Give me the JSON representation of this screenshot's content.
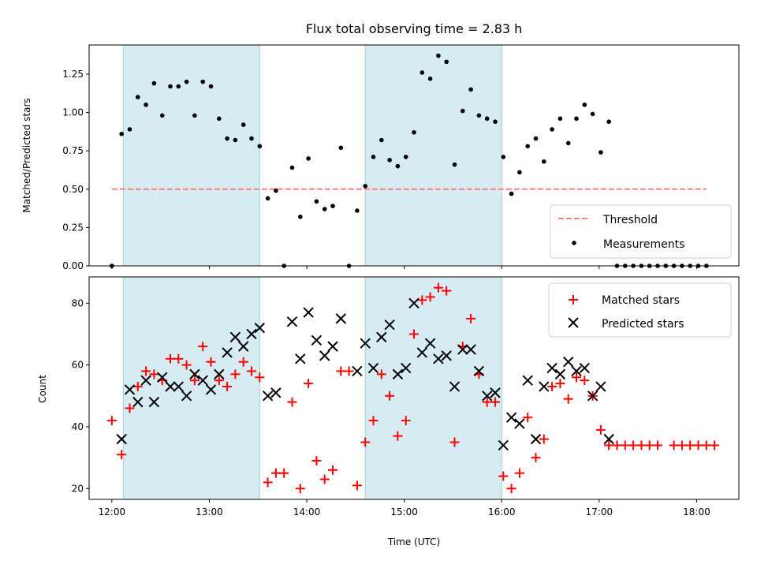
{
  "chart_data": [
    {
      "type": "scatter",
      "title": "Flux total observing time = 2.83 h",
      "ylabel": "Matched/Predicted stars",
      "xlabel": "",
      "xlim": [
        "11:46",
        "18:26"
      ],
      "ylim": [
        0,
        1.44
      ],
      "xticks": [
        "12:00",
        "13:00",
        "14:00",
        "15:00",
        "16:00",
        "17:00",
        "18:00"
      ],
      "yticks": [
        "0.00",
        "0.25",
        "0.50",
        "0.75",
        "1.00",
        "1.25"
      ],
      "shaded_intervals": [
        [
          "12:07",
          "13:31"
        ],
        [
          "14:36",
          "16:00"
        ]
      ],
      "threshold": {
        "name": "Threshold",
        "value": 0.5,
        "x": [
          "12:00",
          "18:06"
        ],
        "color": "#ff7f7f"
      },
      "series": [
        {
          "name": "Measurements",
          "color": "#000000",
          "marker": "dot",
          "points": [
            [
              "12:00",
              0.0
            ],
            [
              "12:06",
              0.86
            ],
            [
              "12:11",
              0.89
            ],
            [
              "12:16",
              1.1
            ],
            [
              "12:21",
              1.05
            ],
            [
              "12:26",
              1.19
            ],
            [
              "12:31",
              0.98
            ],
            [
              "12:36",
              1.17
            ],
            [
              "12:41",
              1.17
            ],
            [
              "12:46",
              1.2
            ],
            [
              "12:51",
              0.98
            ],
            [
              "12:56",
              1.2
            ],
            [
              "13:01",
              1.17
            ],
            [
              "13:06",
              0.96
            ],
            [
              "13:11",
              0.83
            ],
            [
              "13:16",
              0.82
            ],
            [
              "13:21",
              0.92
            ],
            [
              "13:26",
              0.83
            ],
            [
              "13:31",
              0.78
            ],
            [
              "13:36",
              0.44
            ],
            [
              "13:41",
              0.49
            ],
            [
              "13:46",
              0.0
            ],
            [
              "13:51",
              0.64
            ],
            [
              "13:56",
              0.32
            ],
            [
              "14:01",
              0.7
            ],
            [
              "14:06",
              0.42
            ],
            [
              "14:11",
              0.37
            ],
            [
              "14:16",
              0.39
            ],
            [
              "14:21",
              0.77
            ],
            [
              "14:26",
              0.0
            ],
            [
              "14:31",
              0.36
            ],
            [
              "14:36",
              0.52
            ],
            [
              "14:41",
              0.71
            ],
            [
              "14:46",
              0.82
            ],
            [
              "14:51",
              0.69
            ],
            [
              "14:56",
              0.65
            ],
            [
              "15:01",
              0.71
            ],
            [
              "15:06",
              0.87
            ],
            [
              "15:11",
              1.26
            ],
            [
              "15:16",
              1.22
            ],
            [
              "15:21",
              1.37
            ],
            [
              "15:26",
              1.33
            ],
            [
              "15:31",
              0.66
            ],
            [
              "15:36",
              1.01
            ],
            [
              "15:41",
              1.15
            ],
            [
              "15:46",
              0.98
            ],
            [
              "15:51",
              0.96
            ],
            [
              "15:56",
              0.94
            ],
            [
              "16:01",
              0.71
            ],
            [
              "16:06",
              0.47
            ],
            [
              "16:11",
              0.61
            ],
            [
              "16:16",
              0.78
            ],
            [
              "16:21",
              0.83
            ],
            [
              "16:26",
              0.68
            ],
            [
              "16:31",
              0.89
            ],
            [
              "16:36",
              0.96
            ],
            [
              "16:41",
              0.8
            ],
            [
              "16:46",
              0.96
            ],
            [
              "16:51",
              1.05
            ],
            [
              "16:56",
              0.99
            ],
            [
              "17:01",
              0.74
            ],
            [
              "17:06",
              0.94
            ],
            [
              "17:11",
              0.0
            ],
            [
              "17:16",
              0.0
            ],
            [
              "17:21",
              0.0
            ],
            [
              "17:26",
              0.0
            ],
            [
              "17:31",
              0.0
            ],
            [
              "17:36",
              0.0
            ],
            [
              "17:41",
              0.0
            ],
            [
              "17:46",
              0.0
            ],
            [
              "17:51",
              0.0
            ],
            [
              "17:56",
              0.0
            ],
            [
              "18:01",
              0.0
            ],
            [
              "18:06",
              0.0
            ]
          ]
        }
      ],
      "legend": {
        "placement": "lower-right",
        "entries": [
          "Threshold",
          "Measurements"
        ]
      }
    },
    {
      "type": "scatter",
      "title": "",
      "ylabel": "Count",
      "xlabel": "Time (UTC)",
      "xlim": [
        "11:46",
        "18:26"
      ],
      "ylim": [
        16.5,
        88.5
      ],
      "xticks": [
        "12:00",
        "13:00",
        "14:00",
        "15:00",
        "16:00",
        "17:00",
        "18:00"
      ],
      "yticks": [
        "20",
        "40",
        "60",
        "80"
      ],
      "shaded_intervals": [
        [
          "12:07",
          "13:31"
        ],
        [
          "14:36",
          "16:00"
        ]
      ],
      "series": [
        {
          "name": "Matched stars",
          "color": "#ff0000",
          "marker": "plus",
          "points": [
            [
              "12:00",
              42
            ],
            [
              "12:06",
              31
            ],
            [
              "12:11",
              46
            ],
            [
              "12:16",
              53
            ],
            [
              "12:21",
              58
            ],
            [
              "12:26",
              57
            ],
            [
              "12:31",
              55
            ],
            [
              "12:36",
              62
            ],
            [
              "12:41",
              62
            ],
            [
              "12:46",
              60
            ],
            [
              "12:51",
              55
            ],
            [
              "12:56",
              66
            ],
            [
              "13:01",
              61
            ],
            [
              "13:06",
              55
            ],
            [
              "13:11",
              53
            ],
            [
              "13:16",
              57
            ],
            [
              "13:21",
              61
            ],
            [
              "13:26",
              58
            ],
            [
              "13:31",
              56
            ],
            [
              "13:36",
              22
            ],
            [
              "13:41",
              25
            ],
            [
              "13:46",
              25
            ],
            [
              "13:51",
              48
            ],
            [
              "13:56",
              20
            ],
            [
              "14:01",
              54
            ],
            [
              "14:06",
              29
            ],
            [
              "14:11",
              23
            ],
            [
              "14:16",
              26
            ],
            [
              "14:21",
              58
            ],
            [
              "14:26",
              58
            ],
            [
              "14:31",
              21
            ],
            [
              "14:36",
              35
            ],
            [
              "14:41",
              42
            ],
            [
              "14:46",
              57
            ],
            [
              "14:51",
              50
            ],
            [
              "14:56",
              37
            ],
            [
              "15:01",
              42
            ],
            [
              "15:06",
              70
            ],
            [
              "15:11",
              81
            ],
            [
              "15:16",
              82
            ],
            [
              "15:21",
              85
            ],
            [
              "15:26",
              84
            ],
            [
              "15:31",
              35
            ],
            [
              "15:36",
              66
            ],
            [
              "15:41",
              75
            ],
            [
              "15:46",
              57
            ],
            [
              "15:51",
              48
            ],
            [
              "15:56",
              48
            ],
            [
              "16:01",
              24
            ],
            [
              "16:06",
              20
            ],
            [
              "16:11",
              25
            ],
            [
              "16:16",
              43
            ],
            [
              "16:21",
              30
            ],
            [
              "16:26",
              36
            ],
            [
              "16:31",
              53
            ],
            [
              "16:36",
              54
            ],
            [
              "16:41",
              49
            ],
            [
              "16:46",
              56
            ],
            [
              "16:51",
              55
            ],
            [
              "16:56",
              50
            ],
            [
              "17:01",
              39
            ],
            [
              "17:06",
              34
            ],
            [
              "17:11",
              34
            ],
            [
              "17:16",
              34
            ],
            [
              "17:21",
              34
            ],
            [
              "17:26",
              34
            ],
            [
              "17:31",
              34
            ],
            [
              "17:36",
              34
            ],
            [
              "17:46",
              34
            ],
            [
              "17:51",
              34
            ],
            [
              "17:56",
              34
            ],
            [
              "18:01",
              34
            ],
            [
              "18:06",
              34
            ],
            [
              "18:11",
              34
            ]
          ]
        },
        {
          "name": "Predicted stars",
          "color": "#000000",
          "marker": "x",
          "points": [
            [
              "12:06",
              36
            ],
            [
              "12:11",
              52
            ],
            [
              "12:16",
              48
            ],
            [
              "12:21",
              55
            ],
            [
              "12:26",
              48
            ],
            [
              "12:31",
              56
            ],
            [
              "12:36",
              53
            ],
            [
              "12:41",
              53
            ],
            [
              "12:46",
              50
            ],
            [
              "12:51",
              57
            ],
            [
              "12:56",
              55
            ],
            [
              "13:01",
              52
            ],
            [
              "13:06",
              57
            ],
            [
              "13:11",
              64
            ],
            [
              "13:16",
              69
            ],
            [
              "13:21",
              66
            ],
            [
              "13:26",
              70
            ],
            [
              "13:31",
              72
            ],
            [
              "13:36",
              50
            ],
            [
              "13:41",
              51
            ],
            [
              "13:51",
              74
            ],
            [
              "13:56",
              62
            ],
            [
              "14:01",
              77
            ],
            [
              "14:06",
              68
            ],
            [
              "14:11",
              63
            ],
            [
              "14:16",
              66
            ],
            [
              "14:21",
              75
            ],
            [
              "14:31",
              58
            ],
            [
              "14:36",
              67
            ],
            [
              "14:41",
              59
            ],
            [
              "14:46",
              69
            ],
            [
              "14:51",
              73
            ],
            [
              "14:56",
              57
            ],
            [
              "15:01",
              59
            ],
            [
              "15:06",
              80
            ],
            [
              "15:11",
              64
            ],
            [
              "15:16",
              67
            ],
            [
              "15:21",
              62
            ],
            [
              "15:26",
              63
            ],
            [
              "15:31",
              53
            ],
            [
              "15:36",
              65
            ],
            [
              "15:41",
              65
            ],
            [
              "15:46",
              58
            ],
            [
              "15:51",
              50
            ],
            [
              "15:56",
              51
            ],
            [
              "16:01",
              34
            ],
            [
              "16:06",
              43
            ],
            [
              "16:11",
              41
            ],
            [
              "16:16",
              55
            ],
            [
              "16:21",
              36
            ],
            [
              "16:26",
              53
            ],
            [
              "16:31",
              59
            ],
            [
              "16:36",
              57
            ],
            [
              "16:41",
              61
            ],
            [
              "16:46",
              58
            ],
            [
              "16:51",
              59
            ],
            [
              "16:56",
              50
            ],
            [
              "17:01",
              53
            ],
            [
              "17:06",
              36
            ]
          ]
        }
      ],
      "legend": {
        "placement": "upper-right",
        "entries": [
          "Matched stars",
          "Predicted stars"
        ]
      }
    }
  ],
  "colors": {
    "shade": "#add8e6",
    "shade_edge": "#9fcfdc",
    "threshold": "#ff7f7f",
    "matched": "#ff0000",
    "predicted": "#000000"
  }
}
